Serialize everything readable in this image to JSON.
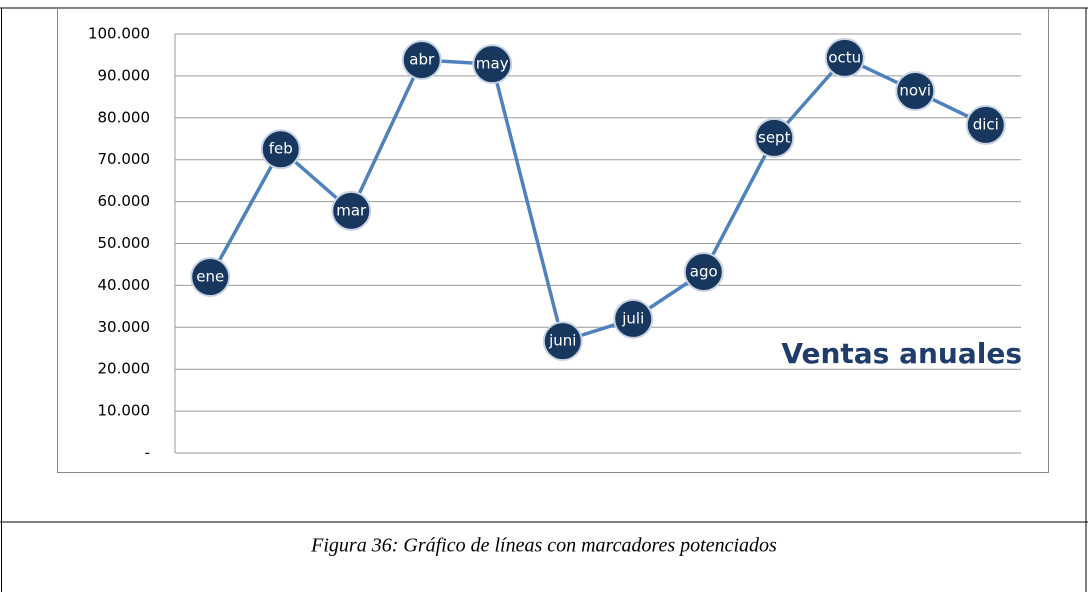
{
  "chart_data": {
    "type": "line",
    "categories": [
      "ene",
      "feb",
      "mar",
      "abr",
      "may",
      "juni",
      "juli",
      "ago",
      "sept",
      "octu",
      "novi",
      "dici"
    ],
    "series": [
      {
        "name": "Ventas anuales",
        "color": "#4f81bd",
        "marker_color": "#17375e",
        "values": [
          42000,
          72500,
          57800,
          93800,
          92800,
          26700,
          32000,
          43200,
          75200,
          94300,
          86400,
          78300
        ]
      }
    ],
    "ylim": [
      0,
      100000
    ],
    "yticks": [
      {
        "value": 0,
        "label": "-"
      },
      {
        "value": 10000,
        "label": "10.000"
      },
      {
        "value": 20000,
        "label": "20.000"
      },
      {
        "value": 30000,
        "label": "30.000"
      },
      {
        "value": 40000,
        "label": "40.000"
      },
      {
        "value": 50000,
        "label": "50.000"
      },
      {
        "value": 60000,
        "label": "60.000"
      },
      {
        "value": 70000,
        "label": "70.000"
      },
      {
        "value": 80000,
        "label": "80.000"
      },
      {
        "value": 90000,
        "label": "90.000"
      },
      {
        "value": 100000,
        "label": "100.000"
      }
    ],
    "grid": true
  },
  "caption": "Figura 36: Gráfico de líneas con marcadores potenciados"
}
